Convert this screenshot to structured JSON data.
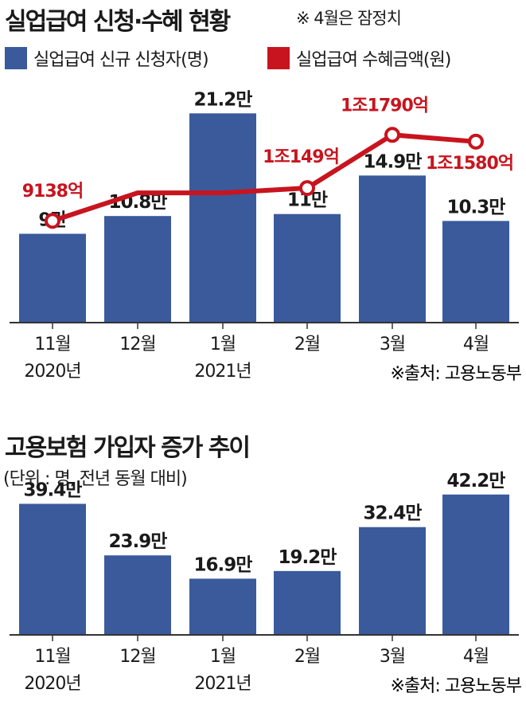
{
  "colors": {
    "bar": "#3a5a9c",
    "line": "#c8141e",
    "axis": "#333333",
    "text": "#1a1a1a"
  },
  "chart1": {
    "title": "실업급여 신청·수혜 현황",
    "note": "※ 4월은 잠정치",
    "legend": [
      {
        "label": "실업급여 신규 신청자(명)",
        "color": "#3a5a9c"
      },
      {
        "label": "실업급여 수혜금액(원)",
        "color": "#c8141e"
      }
    ],
    "source": "※출처: 고용노동부"
  },
  "chart2": {
    "title": "고용보험 가입자 증가 추이",
    "unit_note": "(단위 : 명, 전년 동월 대비)",
    "source": "※출처: 고용노동부"
  },
  "chart_data": [
    {
      "type": "bar",
      "title": "실업급여 신청·수혜 현황",
      "categories": [
        "11월",
        "12월",
        "1월",
        "2월",
        "3월",
        "4월"
      ],
      "year_labels": [
        "2020년",
        "",
        "2021년",
        "",
        "",
        ""
      ],
      "series": [
        {
          "name": "실업급여 신규 신청자(명)",
          "type": "bar",
          "color": "#3a5a9c",
          "values": [
            90000,
            108000,
            212000,
            110000,
            149000,
            103000
          ],
          "labels": [
            "9만",
            "10.8만",
            "21.2만",
            "11만",
            "14.9만",
            "10.3만"
          ]
        },
        {
          "name": "실업급여 수혜금액(원)",
          "type": "line",
          "color": "#c8141e",
          "values": [
            913800000000,
            1000000000000,
            1000000000000,
            1014900000000,
            1179000000000,
            1158000000000
          ],
          "labels": [
            "9138억",
            "",
            "",
            "1조149억",
            "1조1790억",
            "1조1580억"
          ],
          "markers": [
            true,
            false,
            false,
            true,
            true,
            true
          ]
        }
      ],
      "ylim": [
        0,
        230000
      ],
      "line_ylim": [
        600000000000,
        1300000000000
      ],
      "grid": false,
      "legend_position": "top"
    },
    {
      "type": "bar",
      "title": "고용보험 가입자 증가 추이",
      "categories": [
        "11월",
        "12월",
        "1월",
        "2월",
        "3월",
        "4월"
      ],
      "year_labels": [
        "2020년",
        "",
        "2021년",
        "",
        "",
        ""
      ],
      "values": [
        394000,
        239000,
        169000,
        192000,
        324000,
        422000
      ],
      "labels": [
        "39.4만",
        "23.9만",
        "16.9만",
        "19.2만",
        "32.4만",
        "42.2만"
      ],
      "ylim": [
        0,
        460000
      ],
      "grid": false
    }
  ]
}
